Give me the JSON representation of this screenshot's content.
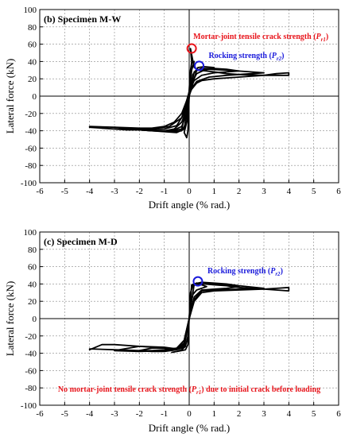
{
  "colors": {
    "annotation_red": "#e8141b",
    "annotation_blue": "#1a1adb",
    "curve": "#000000"
  },
  "chart_data": [
    {
      "type": "line",
      "title": "(b) Specimen M-W",
      "xlabel": "Drift angle (% rad.)",
      "ylabel": "Lateral force (kN)",
      "xlim": [
        -6,
        6
      ],
      "ylim": [
        -100,
        100
      ],
      "xticks": [
        "-6",
        "-5",
        "-4",
        "-3",
        "-2",
        "-1",
        "0",
        "1",
        "2",
        "3",
        "4",
        "5",
        "6"
      ],
      "yticks": [
        "100",
        "80",
        "60",
        "40",
        "20",
        "0",
        "-20",
        "-40",
        "-60",
        "-80",
        "-100"
      ],
      "grid": true,
      "annotations": [
        {
          "text": "Mortar-joint tensile crack strength (",
          "sym": "P",
          "sub": "r1",
          "close": ")",
          "color": "red",
          "x": 0.1,
          "y": 55
        },
        {
          "text": "Rocking strength (",
          "sym": "P",
          "sub": "r2",
          "close": ")",
          "color": "blue",
          "x": 0.4,
          "y": 35
        }
      ],
      "series": [
        {
          "x": [
            0,
            0.1,
            0.05,
            0.2,
            0.4,
            0.7,
            1.0,
            1.5,
            2.0,
            3.0,
            4.0,
            4.0,
            3.5,
            3.0,
            2.5,
            2.0,
            1.5,
            1.0,
            0.5,
            0.3,
            0.1,
            -0.1,
            -0.3,
            -0.6,
            -1.0,
            -1.5,
            -2.0,
            -3.0,
            -4.0,
            -4.0,
            -3.5,
            -3.0,
            -2.5,
            -2.0,
            -1.5,
            -1.0,
            -0.6,
            -0.3,
            -0.1,
            0
          ],
          "y": [
            0,
            40,
            55,
            33,
            30,
            29,
            28,
            26,
            25,
            24,
            24,
            27,
            26,
            24,
            23,
            22,
            21,
            20,
            18,
            15,
            8,
            -5,
            -20,
            -30,
            -35,
            -37,
            -37,
            -36,
            -35,
            -36,
            -37,
            -38,
            -39,
            -39,
            -40,
            -40,
            -39,
            -35,
            -20,
            0
          ]
        },
        {
          "x": [
            0,
            0.3,
            0.8,
            1.5,
            2.5,
            3.0,
            2.5,
            1.5,
            0.8,
            0.3,
            0,
            -0.3,
            -0.8,
            -1.5,
            -2.5,
            -3.0,
            -2.5,
            -1.5,
            -0.8,
            -0.3,
            0
          ],
          "y": [
            0,
            30,
            31,
            30,
            28,
            27,
            26,
            24,
            22,
            17,
            5,
            -25,
            -35,
            -38,
            -38,
            -36,
            -38,
            -40,
            -41,
            -38,
            0
          ]
        },
        {
          "x": [
            0,
            0.2,
            0.5,
            1.0,
            1.5,
            2.0,
            1.5,
            1.0,
            0.5,
            0.2,
            0,
            -0.2,
            -0.5,
            -1.0,
            -1.5,
            -2.0,
            -1.5,
            -1.0,
            -0.5,
            -0.2,
            0
          ],
          "y": [
            0,
            28,
            32,
            32,
            31,
            29,
            28,
            27,
            24,
            18,
            5,
            -20,
            -34,
            -38,
            -39,
            -39,
            -40,
            -41,
            -42,
            -38,
            0
          ]
        },
        {
          "x": [
            0,
            0.15,
            0.35,
            0.6,
            1.0,
            0.6,
            0.3,
            0.1,
            -0.1,
            -0.3,
            -0.6,
            -1.0,
            -0.6,
            -0.3,
            -0.1,
            0
          ],
          "y": [
            0,
            25,
            33,
            34,
            33,
            30,
            26,
            15,
            -15,
            -30,
            -38,
            -40,
            -41,
            -40,
            -30,
            0
          ]
        },
        {
          "x": [
            0,
            0.05,
            0.1,
            0.2,
            0.1,
            0.05,
            -0.05,
            -0.1,
            -0.2,
            -0.1,
            -0.05,
            0
          ],
          "y": [
            0,
            15,
            30,
            40,
            38,
            30,
            -15,
            -30,
            -42,
            -48,
            -40,
            0
          ]
        }
      ]
    },
    {
      "type": "line",
      "title": "(c) Specimen M-D",
      "xlabel": "Drift angle (% rad.)",
      "ylabel": "Lateral force (kN)",
      "xlim": [
        -6,
        6
      ],
      "ylim": [
        -100,
        100
      ],
      "xticks": [
        "-6",
        "-5",
        "-4",
        "-3",
        "-2",
        "-1",
        "0",
        "1",
        "2",
        "3",
        "4",
        "5",
        "6"
      ],
      "yticks": [
        "100",
        "80",
        "60",
        "40",
        "20",
        "0",
        "-20",
        "-40",
        "-60",
        "-80",
        "-100"
      ],
      "grid": true,
      "annotations": [
        {
          "text": "Rocking strength (",
          "sym": "P",
          "sub": "r2",
          "close": ")",
          "color": "blue",
          "x": 0.35,
          "y": 43
        },
        {
          "text": "No mortar-joint tensile crack strength (",
          "sym": "P",
          "sub": "r1",
          "close": ") due to initial crack before loading",
          "color": "red",
          "x": null,
          "y": null
        }
      ],
      "series": [
        {
          "x": [
            0,
            0.1,
            0.3,
            0.6,
            1.0,
            1.5,
            2.0,
            3.0,
            4.0,
            4.0,
            3.5,
            3.0,
            2.0,
            1.0,
            0.5,
            0.2,
            0,
            -0.2,
            -0.5,
            -1.0,
            -1.5,
            -2.0,
            -3.0,
            -4.0,
            -4.0,
            -3.5,
            -3.0,
            -2.0,
            -1.0,
            -0.5,
            -0.2,
            0
          ],
          "y": [
            0,
            38,
            41,
            40,
            39,
            38,
            36,
            34,
            32,
            36,
            35,
            34,
            33,
            32,
            30,
            20,
            0,
            -25,
            -34,
            -36,
            -37,
            -37,
            -36,
            -35,
            -36,
            -30,
            -30,
            -32,
            -34,
            -35,
            -30,
            0
          ]
        },
        {
          "x": [
            0,
            0.2,
            0.5,
            1.0,
            1.5,
            2.0,
            3.0,
            2.0,
            1.0,
            0.5,
            0.2,
            0,
            -0.2,
            -0.5,
            -1.0,
            -2.0,
            -3.0,
            -2.0,
            -1.0,
            -0.5,
            -0.2,
            0
          ],
          "y": [
            0,
            40,
            42,
            41,
            40,
            38,
            35,
            34,
            33,
            32,
            22,
            0,
            -25,
            -35,
            -37,
            -38,
            -37,
            -32,
            -33,
            -35,
            -32,
            0
          ]
        },
        {
          "x": [
            0,
            0.1,
            0.3,
            0.6,
            1.0,
            1.5,
            2.0,
            1.5,
            1.0,
            0.5,
            0.2,
            0,
            -0.2,
            -0.5,
            -1.0,
            -1.5,
            -2.0,
            -1.5,
            -1.0,
            -0.5,
            -0.2,
            0
          ],
          "y": [
            0,
            39,
            41,
            40,
            40,
            39,
            37,
            35,
            34,
            33,
            25,
            0,
            -28,
            -36,
            -38,
            -38,
            -37,
            -34,
            -34,
            -36,
            -33,
            0
          ]
        },
        {
          "x": [
            0,
            0.05,
            0.15,
            0.3,
            0.5,
            0.7,
            0.5,
            0.3,
            0.15,
            0.05,
            0,
            -0.05,
            -0.15,
            -0.3,
            -0.5,
            -0.7,
            -0.5,
            -0.3,
            -0.15,
            -0.05,
            0
          ],
          "y": [
            0,
            30,
            38,
            40,
            39,
            37,
            35,
            33,
            28,
            15,
            0,
            -20,
            -32,
            -36,
            -38,
            -39,
            -38,
            -37,
            -36,
            -30,
            0
          ]
        }
      ]
    }
  ]
}
